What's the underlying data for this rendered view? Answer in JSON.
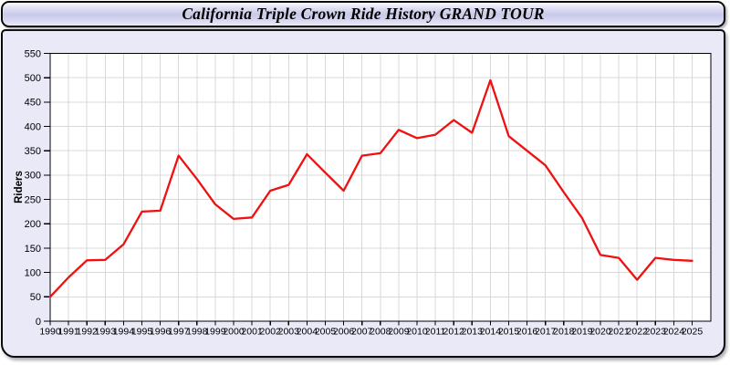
{
  "header": {
    "title": "California Triple Crown Ride History GRAND TOUR"
  },
  "colors": {
    "panel_bg": "#e9e9f8",
    "titlebar_mid": "#c9c9e9",
    "plot_bg": "#ffffff",
    "grid": "#d8d8d8",
    "axis": "#000000",
    "series_line": "#ee1111",
    "border": "#0a0a0a"
  },
  "chart_data": {
    "type": "line",
    "title": "California Triple Crown Ride History GRAND TOUR",
    "xlabel": "",
    "ylabel": "Riders",
    "ylim": [
      0,
      550
    ],
    "ytick_step": 50,
    "grid": true,
    "legend": "none",
    "x": [
      1990,
      1991,
      1992,
      1993,
      1994,
      1995,
      1996,
      1997,
      1998,
      1999,
      2000,
      2001,
      2002,
      2003,
      2004,
      2005,
      2006,
      2007,
      2008,
      2009,
      2010,
      2011,
      2012,
      2013,
      2014,
      2015,
      2016,
      2017,
      2018,
      2019,
      2020,
      2021,
      2022,
      2023,
      2024,
      2025
    ],
    "series": [
      {
        "name": "Riders",
        "color": "#ee1111",
        "values": [
          50,
          90,
          125,
          126,
          158,
          225,
          227,
          340,
          292,
          240,
          210,
          213,
          268,
          280,
          343,
          305,
          268,
          340,
          345,
          393,
          376,
          383,
          413,
          387,
          495,
          380,
          350,
          320,
          265,
          212,
          136,
          130,
          85,
          130,
          126,
          124
        ]
      }
    ]
  }
}
